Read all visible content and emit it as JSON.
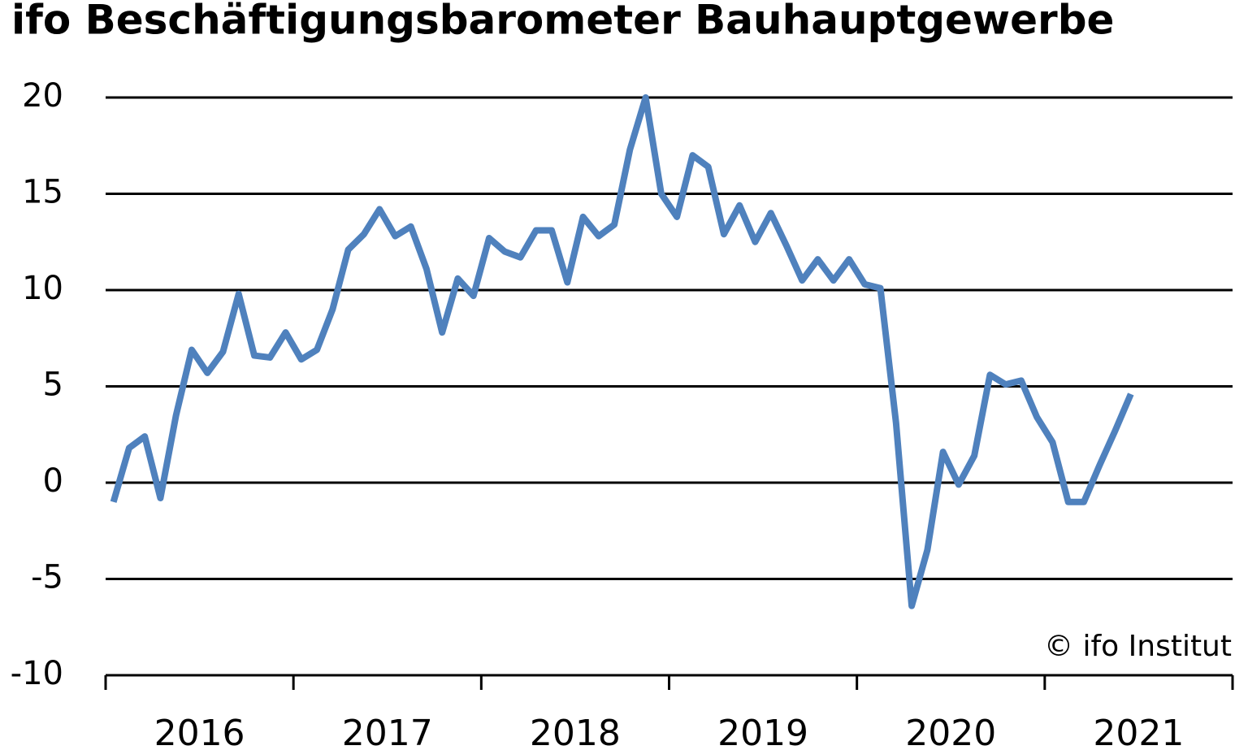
{
  "chart_data": {
    "type": "line",
    "title": "ifo Beschäftigungsbarometer Bauhauptgewerbe",
    "annotation": "© ifo Institut",
    "categories": [
      "2016",
      null,
      null,
      null,
      null,
      null,
      null,
      null,
      null,
      null,
      null,
      null,
      "2017",
      null,
      null,
      null,
      null,
      null,
      null,
      null,
      null,
      null,
      null,
      null,
      "2018",
      null,
      null,
      null,
      null,
      null,
      null,
      null,
      null,
      null,
      null,
      null,
      "2019",
      null,
      null,
      null,
      null,
      null,
      null,
      null,
      null,
      null,
      null,
      null,
      "2020",
      null,
      null,
      null,
      null,
      null,
      null,
      null,
      null,
      null,
      null,
      null,
      "2021",
      null,
      null,
      null,
      null,
      null,
      null,
      null,
      null,
      null,
      null,
      null
    ],
    "series": [
      {
        "color": "#4f81bd",
        "values": [
          -1.0,
          1.8,
          2.4,
          -0.8,
          3.5,
          6.9,
          5.7,
          6.8,
          9.8,
          6.6,
          6.5,
          7.8,
          6.4,
          6.9,
          9.0,
          12.1,
          12.9,
          14.2,
          12.8,
          13.3,
          11.1,
          7.8,
          10.6,
          9.7,
          12.7,
          12.0,
          11.7,
          13.1,
          13.1,
          10.4,
          13.8,
          12.8,
          13.4,
          17.3,
          20.0,
          15.0,
          13.8,
          17.0,
          16.4,
          12.9,
          14.4,
          12.5,
          14.0,
          12.3,
          10.5,
          11.6,
          10.5,
          11.6,
          10.3,
          10.1,
          3.1,
          -6.4,
          -3.5,
          1.6,
          -0.1,
          1.4,
          5.6,
          5.1,
          5.3,
          3.4,
          2.1,
          -1.0,
          -1.0,
          0.9,
          2.7,
          4.6,
          null,
          null,
          null,
          null,
          null,
          null
        ]
      }
    ],
    "ylim": [
      -10,
      20
    ],
    "yticks": [
      -10,
      -5,
      0,
      5,
      10,
      15,
      20
    ],
    "grid": true
  }
}
